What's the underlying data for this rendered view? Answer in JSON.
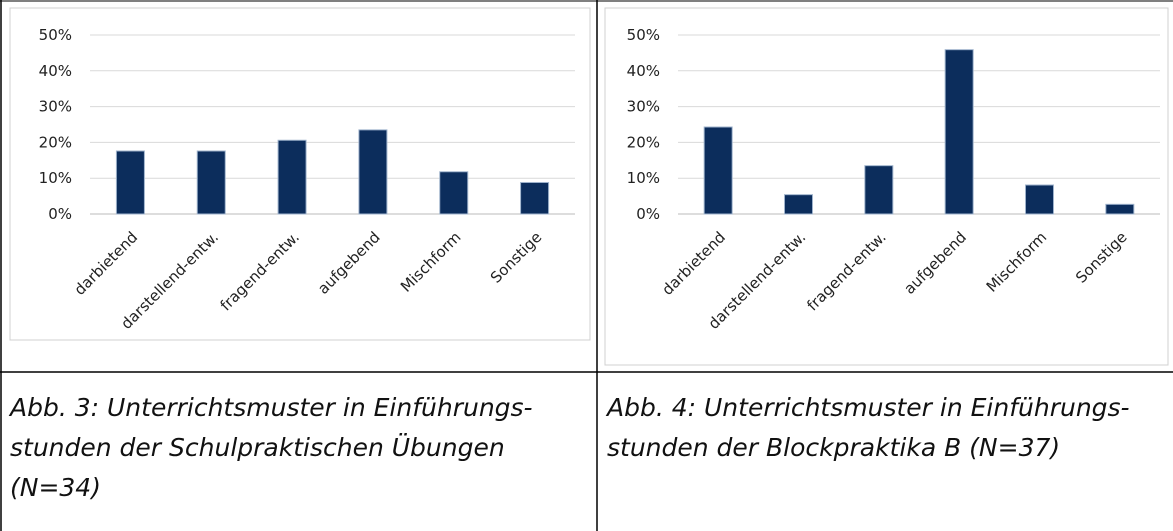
{
  "chart_data": [
    {
      "type": "bar",
      "categories": [
        "darbietend",
        "darstellend-entw.",
        "fragend-entw.",
        "aufgebend",
        "Mischform",
        "Sonstige"
      ],
      "values": [
        17.6,
        17.6,
        20.6,
        23.5,
        11.8,
        8.8
      ],
      "color": "#0c2d5c",
      "ylim": [
        0,
        50
      ],
      "yticks": [
        {
          "value": 0,
          "label": "0%"
        },
        {
          "value": 10,
          "label": "10%"
        },
        {
          "value": 20,
          "label": "20%"
        },
        {
          "value": 30,
          "label": "30%"
        },
        {
          "value": 40,
          "label": "40%"
        },
        {
          "value": 50,
          "label": "50%"
        }
      ],
      "grid": true,
      "caption": "Abb. 3: Unterrichtsmuster in Einführungs-stunden der Schulpraktischen Übungen (N=34)"
    },
    {
      "type": "bar",
      "categories": [
        "darbietend",
        "darstellend-entw.",
        "fragend-entw.",
        "aufgebend",
        "Mischform",
        "Sonstige"
      ],
      "values": [
        24.3,
        5.4,
        13.5,
        45.9,
        8.1,
        2.7
      ],
      "color": "#0c2d5c",
      "ylim": [
        0,
        50
      ],
      "yticks": [
        {
          "value": 0,
          "label": "0%"
        },
        {
          "value": 10,
          "label": "10%"
        },
        {
          "value": 20,
          "label": "20%"
        },
        {
          "value": 30,
          "label": "30%"
        },
        {
          "value": 40,
          "label": "40%"
        },
        {
          "value": 50,
          "label": "50%"
        }
      ],
      "grid": true,
      "caption": "Abb. 4: Unterrichtsmuster in Einführungs-stunden der Blockpraktika B (N=37)"
    }
  ]
}
